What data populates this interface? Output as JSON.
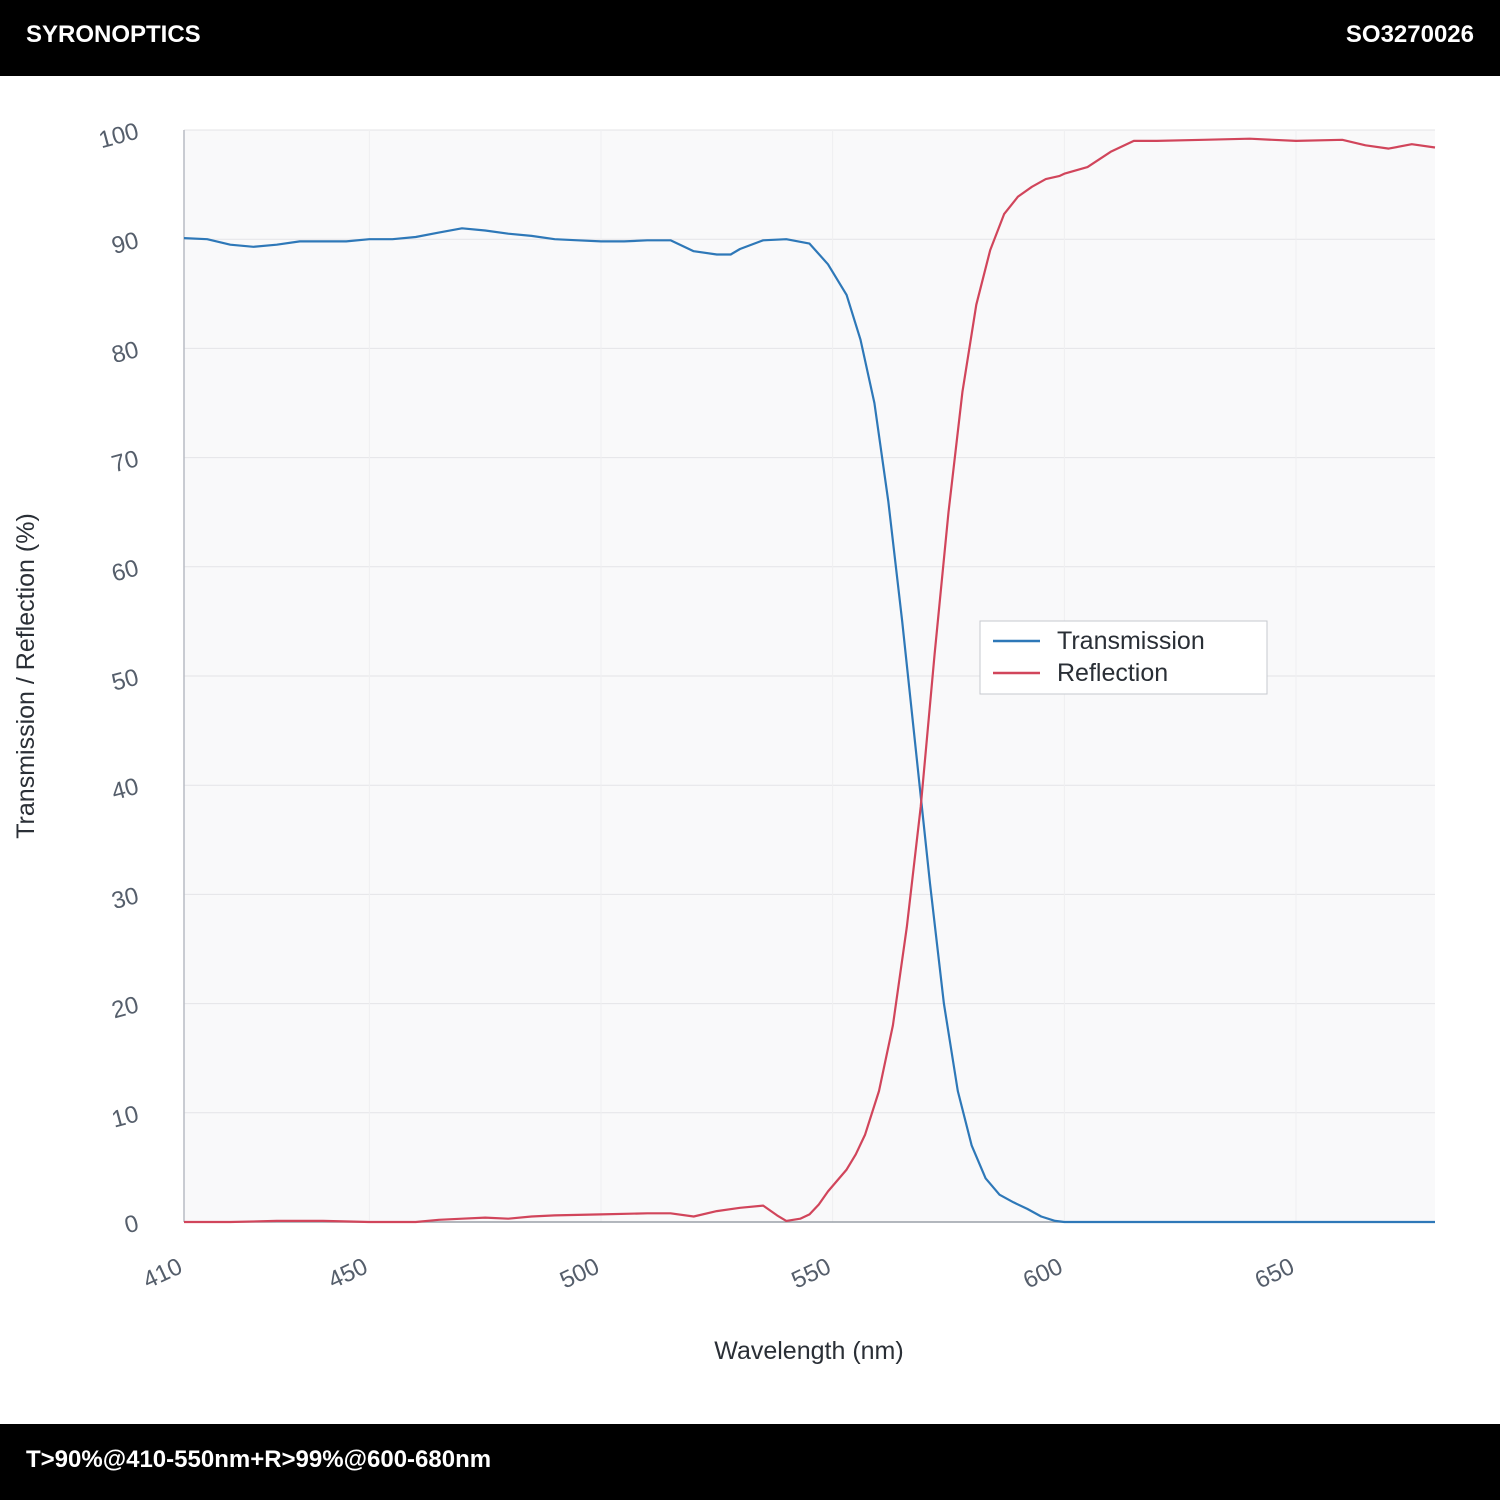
{
  "header": {
    "brand": "SYRONOPTICS",
    "part_number": "SO3270026"
  },
  "footer": {
    "spec": "T>90%@410-550nm+R>99%@600-680nm"
  },
  "colors": {
    "transmission": "#2e78b8",
    "reflection": "#d1455b",
    "bar_background": "#000000",
    "plot_background": "#f9f9fa",
    "grid": "#e4e4e7"
  },
  "chart_data": {
    "type": "line",
    "xlabel": "Wavelength (nm)",
    "ylabel": "Transmission / Reflection (%)",
    "xlim": [
      410,
      680
    ],
    "ylim": [
      0,
      100
    ],
    "x_ticks": [
      410,
      450,
      500,
      550,
      600,
      650
    ],
    "y_ticks": [
      0,
      10,
      20,
      30,
      40,
      50,
      60,
      70,
      80,
      90,
      100
    ],
    "grid": true,
    "legend_position": "center-right",
    "series": [
      {
        "name": "Transmission",
        "color": "#2e78b8",
        "x": [
          410,
          415,
          420,
          425,
          430,
          435,
          440,
          445,
          450,
          455,
          460,
          465,
          470,
          475,
          480,
          485,
          490,
          495,
          500,
          505,
          510,
          515,
          520,
          525,
          528,
          530,
          535,
          540,
          545,
          549,
          553,
          556,
          559,
          562,
          565,
          568,
          571,
          574,
          577,
          580,
          583,
          586,
          589,
          592,
          595,
          598,
          600,
          602,
          604,
          606,
          610,
          620,
          630,
          640,
          650,
          660,
          670,
          680
        ],
        "y": [
          90.1,
          90.0,
          89.5,
          89.3,
          89.5,
          89.8,
          89.8,
          89.8,
          90.0,
          90.0,
          90.2,
          90.6,
          91.0,
          90.8,
          90.5,
          90.3,
          90.0,
          89.9,
          89.8,
          89.8,
          89.9,
          89.9,
          88.9,
          88.6,
          88.6,
          89.1,
          89.9,
          90.0,
          89.6,
          87.7,
          84.9,
          80.8,
          75.0,
          66.0,
          55.0,
          43.0,
          31.0,
          20.0,
          12.0,
          7.0,
          4.0,
          2.5,
          1.8,
          1.2,
          0.5,
          0.1,
          0.0,
          0.0,
          0.0,
          0.0,
          0.0,
          0.0,
          0.0,
          0.0,
          0.0,
          0.0,
          0.0,
          0.0
        ]
      },
      {
        "name": "Reflection",
        "color": "#d1455b",
        "x": [
          410,
          420,
          430,
          440,
          450,
          460,
          465,
          470,
          475,
          480,
          485,
          490,
          500,
          510,
          515,
          520,
          525,
          530,
          535,
          538,
          540,
          543,
          545,
          547,
          549,
          551,
          553,
          555,
          557,
          560,
          563,
          566,
          569,
          572,
          575,
          578,
          581,
          584,
          587,
          590,
          593,
          596,
          599,
          600,
          605,
          610,
          615,
          620,
          630,
          640,
          650,
          660,
          665,
          670,
          675,
          680
        ],
        "y": [
          0.0,
          0.0,
          0.1,
          0.1,
          0.0,
          0.0,
          0.2,
          0.3,
          0.4,
          0.3,
          0.5,
          0.6,
          0.7,
          0.8,
          0.8,
          0.5,
          1.0,
          1.3,
          1.5,
          0.6,
          0.1,
          0.3,
          0.7,
          1.6,
          2.8,
          3.8,
          4.8,
          6.2,
          8.0,
          12.0,
          18.0,
          27.0,
          38.0,
          52.0,
          65.0,
          76.0,
          84.0,
          89.0,
          92.3,
          93.9,
          94.8,
          95.5,
          95.8,
          96.0,
          96.6,
          98.0,
          99.0,
          99.0,
          99.1,
          99.2,
          99.0,
          99.1,
          98.6,
          98.3,
          98.7,
          98.4
        ]
      }
    ]
  }
}
